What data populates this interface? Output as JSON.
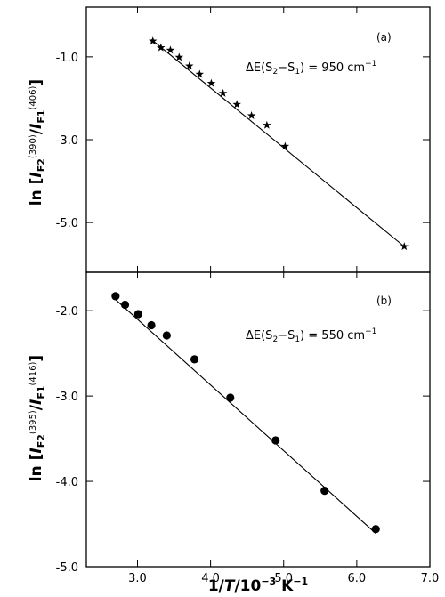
{
  "chart_data": [
    {
      "panel_label": "(a)",
      "type": "scatter",
      "annotation": "ΔE(S2−S1) = 950 cm−1",
      "annotation_parts": {
        "prefix": "ΔE(S",
        "sub1": "2",
        "mid": "−S",
        "sub2": "1",
        "suffix": ") = 950 cm",
        "sup": "−1"
      },
      "ylabel": "ln [IF2(390)/IF1(406)]",
      "ylabel_parts": {
        "pre": "ln [",
        "I1": "I",
        "I1sub": "F2",
        "I1sup": "(390)",
        "slash": "/",
        "I2": "I",
        "I2sub": "F1",
        "I2sup": "(406)",
        "post": "]"
      },
      "xlim": [
        2.3,
        7.0
      ],
      "ylim": [
        -6.2,
        0.2
      ],
      "yticks": [
        -1.0,
        -3.0,
        -5.0
      ],
      "ytick_labels": [
        "-1.0",
        "-3.0",
        "-5.0"
      ],
      "marker": "star",
      "points": [
        {
          "x": 3.21,
          "y": -0.62
        },
        {
          "x": 3.32,
          "y": -0.78
        },
        {
          "x": 3.45,
          "y": -0.84
        },
        {
          "x": 3.57,
          "y": -1.01
        },
        {
          "x": 3.71,
          "y": -1.22
        },
        {
          "x": 3.85,
          "y": -1.42
        },
        {
          "x": 4.01,
          "y": -1.64
        },
        {
          "x": 4.17,
          "y": -1.88
        },
        {
          "x": 4.36,
          "y": -2.15
        },
        {
          "x": 4.56,
          "y": -2.42
        },
        {
          "x": 4.77,
          "y": -2.65
        },
        {
          "x": 5.02,
          "y": -3.16
        },
        {
          "x": 6.65,
          "y": -5.58
        }
      ],
      "fit_line": [
        {
          "x": 3.19,
          "y": -0.58
        },
        {
          "x": 6.65,
          "y": -5.58
        }
      ]
    },
    {
      "panel_label": "(b)",
      "type": "scatter",
      "annotation": "ΔE(S2−S1) = 550 cm−1",
      "annotation_parts": {
        "prefix": "ΔE(S",
        "sub1": "2",
        "mid": "−S",
        "sub2": "1",
        "suffix": ") = 550 cm",
        "sup": "−1"
      },
      "ylabel": "ln [IF2(395)/IF1(416)]",
      "ylabel_parts": {
        "pre": "ln [",
        "I1": "I",
        "I1sub": "F2",
        "I1sup": "(395)",
        "slash": "/",
        "I2": "I",
        "I2sub": "F1",
        "I2sup": "(416)",
        "post": "]"
      },
      "xlabel": "1/T/10−3 K−1",
      "xlabel_parts": {
        "pre": "1/",
        "T": "T",
        "mid": "/10",
        "sup1": "−3",
        "unit": " K",
        "sup2": "−1"
      },
      "xlim": [
        2.3,
        7.0
      ],
      "ylim": [
        -5.0,
        -1.55
      ],
      "xticks": [
        3.0,
        4.0,
        5.0,
        6.0,
        7.0
      ],
      "xtick_labels": [
        "3.0",
        "4.0",
        "5.0",
        "6.0",
        "7.0"
      ],
      "yticks": [
        -2.0,
        -3.0,
        -4.0,
        -5.0
      ],
      "ytick_labels": [
        "-2.0",
        "-3.0",
        "-4.0",
        "-5.0"
      ],
      "marker": "filled-circle",
      "points": [
        {
          "x": 2.7,
          "y": -1.83
        },
        {
          "x": 2.83,
          "y": -1.93
        },
        {
          "x": 3.01,
          "y": -2.04
        },
        {
          "x": 3.19,
          "y": -2.17
        },
        {
          "x": 3.4,
          "y": -2.29
        },
        {
          "x": 3.78,
          "y": -2.57
        },
        {
          "x": 4.27,
          "y": -3.02
        },
        {
          "x": 4.89,
          "y": -3.52
        },
        {
          "x": 5.56,
          "y": -4.11
        },
        {
          "x": 6.26,
          "y": -4.56
        }
      ],
      "fit_line": [
        {
          "x": 2.7,
          "y": -1.87
        },
        {
          "x": 6.26,
          "y": -4.61
        }
      ]
    }
  ]
}
